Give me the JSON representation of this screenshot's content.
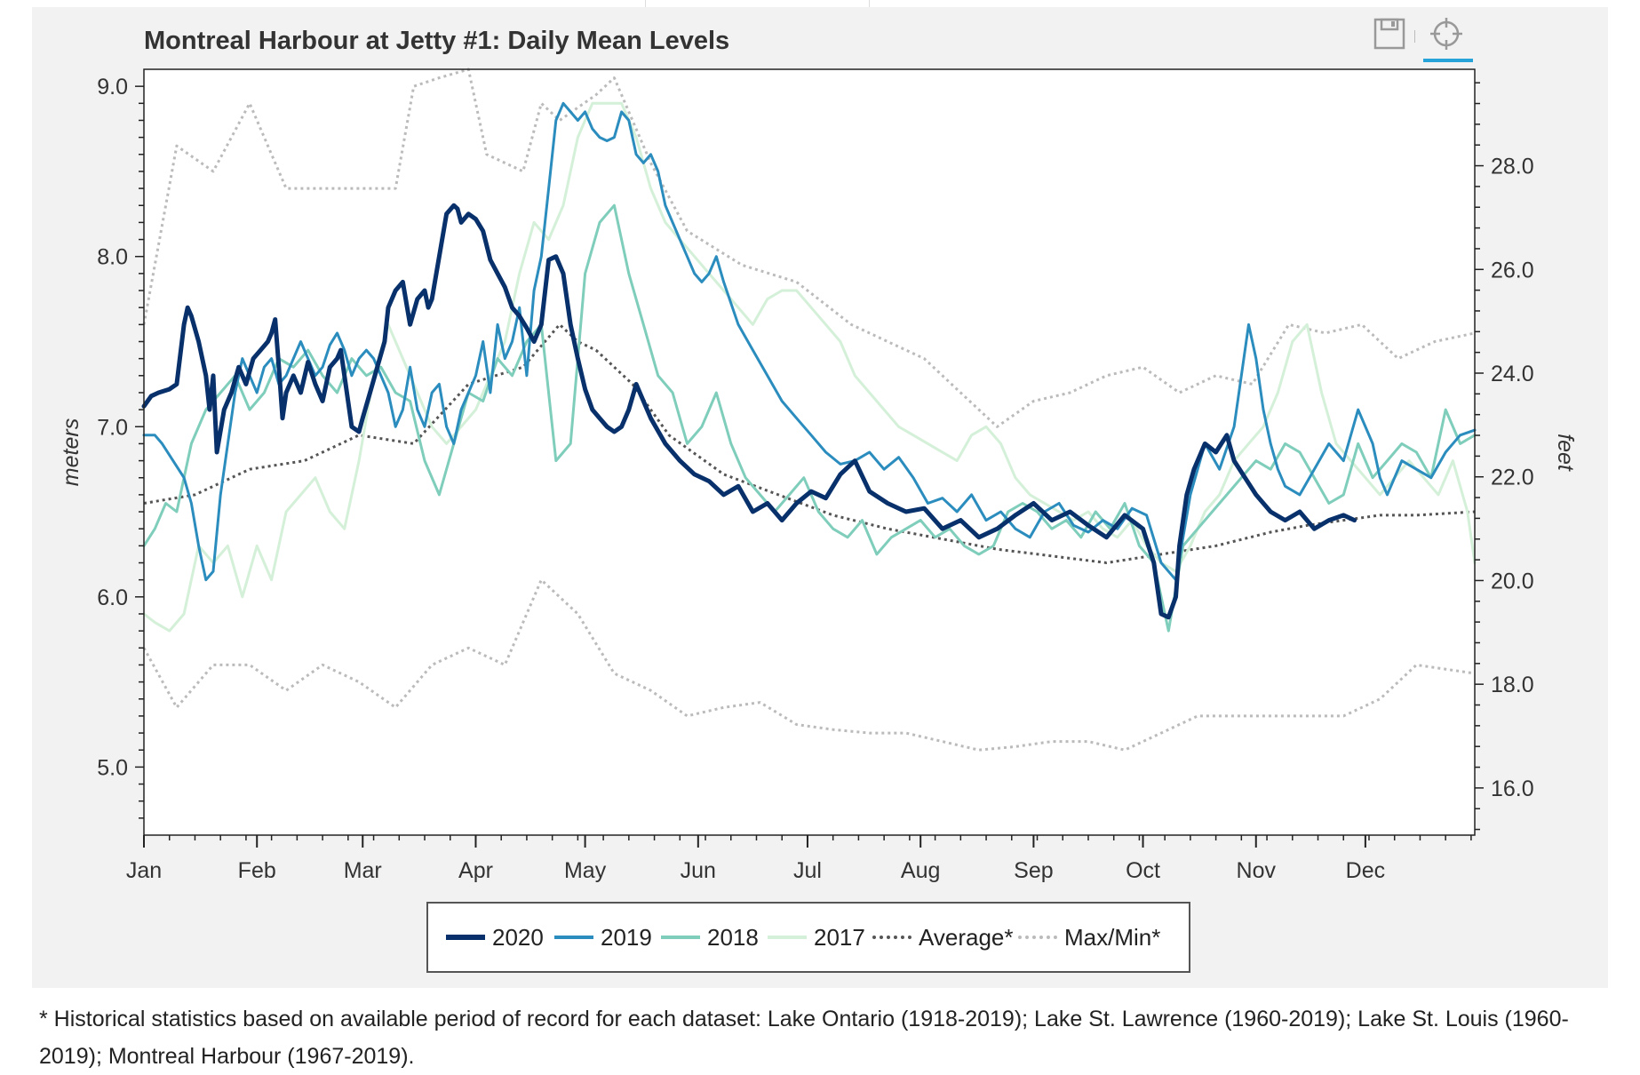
{
  "title": "Montreal Harbour at Jetty #1: Daily Mean Levels",
  "toolbar": {
    "save_icon": "save-icon",
    "crosshair_icon": "crosshair-icon"
  },
  "footnote": "* Historical statistics based on available period of record for each dataset: Lake Ontario (1918-2019); Lake St. Lawrence (1960-2019); Lake St. Louis (1960-2019); Montreal Harbour (1967-2019).",
  "legend": [
    {
      "label": "2020",
      "color": "#08306b",
      "style": "solid-thick"
    },
    {
      "label": "2019",
      "color": "#2b8cbe",
      "style": "solid"
    },
    {
      "label": "2018",
      "color": "#7fcdbb",
      "style": "solid"
    },
    {
      "label": "2017",
      "color": "#d4f0d8",
      "style": "solid"
    },
    {
      "label": "Average*",
      "color": "#555555",
      "style": "dotted"
    },
    {
      "label": "Max/Min*",
      "color": "#bbbbbb",
      "style": "dotted"
    }
  ],
  "chart_data": {
    "type": "line",
    "title": "Montreal Harbour at Jetty #1: Daily Mean Levels",
    "xlabel": "",
    "ylabel": "meters",
    "y2label": "feet",
    "x_unit": "day of year",
    "xlim": [
      1,
      366
    ],
    "ylim": [
      4.6,
      9.1
    ],
    "y2lim": [
      15.09,
      29.86
    ],
    "x_ticks": [
      {
        "label": "Jan",
        "day": 1
      },
      {
        "label": "Feb",
        "day": 32
      },
      {
        "label": "Mar",
        "day": 61
      },
      {
        "label": "Apr",
        "day": 92
      },
      {
        "label": "May",
        "day": 122
      },
      {
        "label": "Jun",
        "day": 153
      },
      {
        "label": "Jul",
        "day": 183
      },
      {
        "label": "Aug",
        "day": 214
      },
      {
        "label": "Sep",
        "day": 245
      },
      {
        "label": "Oct",
        "day": 275
      },
      {
        "label": "Nov",
        "day": 306
      },
      {
        "label": "Dec",
        "day": 336
      }
    ],
    "y_ticks": [
      "5.0",
      "6.0",
      "7.0",
      "8.0",
      "9.0"
    ],
    "y2_ticks": [
      "16.0",
      "18.0",
      "20.0",
      "22.0",
      "24.0",
      "26.0",
      "28.0"
    ],
    "grid": false,
    "legend_position": "bottom",
    "series": [
      {
        "name": "2020",
        "color": "#08306b",
        "width": 5,
        "x": [
          1,
          3,
          5,
          8,
          10,
          12,
          13,
          14,
          16,
          18,
          19,
          20,
          21,
          23,
          25,
          27,
          29,
          31,
          33,
          35,
          36,
          37,
          38,
          39,
          40,
          42,
          44,
          46,
          48,
          50,
          52,
          54,
          55,
          56,
          58,
          60,
          61,
          63,
          65,
          67,
          68,
          70,
          72,
          74,
          76,
          78,
          79,
          80,
          82,
          84,
          86,
          87,
          88,
          90,
          92,
          94,
          96,
          98,
          100,
          102,
          104,
          106,
          108,
          110,
          112,
          114,
          116,
          118,
          120,
          122,
          124,
          126,
          128,
          130,
          132,
          134,
          136,
          140,
          144,
          148,
          152,
          156,
          160,
          164,
          168,
          172,
          176,
          180,
          184,
          188,
          192,
          196,
          200,
          205,
          210,
          215,
          220,
          225,
          230,
          235,
          240,
          245,
          250,
          255,
          260,
          265,
          270,
          275,
          278,
          280,
          282,
          284,
          285,
          287,
          289,
          292,
          295,
          298,
          300,
          303,
          306,
          310,
          314,
          318,
          322,
          326,
          330,
          333
        ],
        "y": [
          7.12,
          7.18,
          7.2,
          7.22,
          7.25,
          7.6,
          7.7,
          7.65,
          7.5,
          7.3,
          7.1,
          7.3,
          6.85,
          7.1,
          7.2,
          7.35,
          7.25,
          7.4,
          7.45,
          7.5,
          7.55,
          7.63,
          7.35,
          7.05,
          7.2,
          7.3,
          7.2,
          7.38,
          7.25,
          7.15,
          7.35,
          7.4,
          7.45,
          7.3,
          7.0,
          6.97,
          7.05,
          7.2,
          7.35,
          7.5,
          7.7,
          7.8,
          7.85,
          7.6,
          7.75,
          7.8,
          7.7,
          7.75,
          8.0,
          8.25,
          8.3,
          8.28,
          8.2,
          8.25,
          8.22,
          8.15,
          7.98,
          7.9,
          7.82,
          7.7,
          7.65,
          7.58,
          7.5,
          7.6,
          7.98,
          8.0,
          7.9,
          7.6,
          7.4,
          7.22,
          7.1,
          7.05,
          7.0,
          6.97,
          7.0,
          7.1,
          7.25,
          7.05,
          6.9,
          6.8,
          6.72,
          6.68,
          6.6,
          6.65,
          6.5,
          6.55,
          6.45,
          6.55,
          6.62,
          6.58,
          6.72,
          6.8,
          6.62,
          6.55,
          6.5,
          6.52,
          6.4,
          6.45,
          6.35,
          6.4,
          6.48,
          6.55,
          6.45,
          6.5,
          6.42,
          6.35,
          6.48,
          6.4,
          6.2,
          5.9,
          5.88,
          6.0,
          6.3,
          6.6,
          6.75,
          6.9,
          6.85,
          6.95,
          6.8,
          6.7,
          6.6,
          6.5,
          6.45,
          6.5,
          6.4,
          6.45,
          6.48,
          6.45
        ]
      },
      {
        "name": "2019",
        "color": "#2b8cbe",
        "width": 3,
        "x": [
          1,
          4,
          6,
          9,
          12,
          14,
          16,
          18,
          20,
          22,
          24,
          26,
          28,
          30,
          32,
          34,
          36,
          38,
          40,
          42,
          44,
          46,
          48,
          50,
          52,
          54,
          56,
          58,
          60,
          62,
          64,
          66,
          68,
          70,
          72,
          74,
          76,
          78,
          80,
          82,
          84,
          86,
          88,
          90,
          92,
          94,
          96,
          98,
          100,
          102,
          104,
          106,
          108,
          110,
          112,
          114,
          116,
          118,
          120,
          122,
          124,
          126,
          128,
          130,
          132,
          134,
          136,
          138,
          140,
          142,
          144,
          146,
          148,
          150,
          152,
          154,
          156,
          158,
          160,
          164,
          168,
          172,
          176,
          180,
          184,
          188,
          192,
          196,
          200,
          204,
          208,
          212,
          216,
          220,
          224,
          228,
          232,
          236,
          240,
          244,
          248,
          252,
          256,
          260,
          264,
          268,
          272,
          276,
          280,
          284,
          288,
          292,
          296,
          300,
          302,
          304,
          306,
          308,
          310,
          312,
          314,
          318,
          322,
          326,
          330,
          334,
          338,
          340,
          342,
          346,
          350,
          354,
          358,
          362,
          366
        ],
        "y": [
          6.95,
          6.95,
          6.9,
          6.8,
          6.7,
          6.55,
          6.3,
          6.1,
          6.15,
          6.6,
          6.9,
          7.2,
          7.4,
          7.3,
          7.2,
          7.35,
          7.4,
          7.25,
          7.3,
          7.4,
          7.5,
          7.4,
          7.3,
          7.35,
          7.48,
          7.55,
          7.45,
          7.3,
          7.4,
          7.45,
          7.4,
          7.3,
          7.2,
          7.0,
          7.1,
          7.35,
          7.1,
          7.0,
          7.2,
          7.25,
          7.0,
          6.9,
          7.1,
          7.2,
          7.3,
          7.5,
          7.2,
          7.6,
          7.4,
          7.5,
          7.7,
          7.3,
          7.8,
          8.0,
          8.4,
          8.8,
          8.9,
          8.85,
          8.8,
          8.85,
          8.75,
          8.7,
          8.68,
          8.7,
          8.85,
          8.8,
          8.6,
          8.55,
          8.6,
          8.5,
          8.3,
          8.2,
          8.1,
          8.0,
          7.9,
          7.85,
          7.9,
          8.0,
          7.85,
          7.6,
          7.45,
          7.3,
          7.15,
          7.05,
          6.95,
          6.85,
          6.78,
          6.8,
          6.85,
          6.75,
          6.82,
          6.7,
          6.55,
          6.58,
          6.5,
          6.6,
          6.45,
          6.5,
          6.4,
          6.35,
          6.5,
          6.55,
          6.42,
          6.38,
          6.45,
          6.4,
          6.52,
          6.48,
          6.2,
          6.1,
          6.6,
          6.9,
          6.75,
          7.0,
          7.3,
          7.6,
          7.4,
          7.1,
          6.9,
          6.75,
          6.65,
          6.6,
          6.75,
          6.9,
          6.8,
          7.1,
          6.9,
          6.7,
          6.6,
          6.8,
          6.75,
          6.7,
          6.85,
          6.95,
          6.98
        ]
      },
      {
        "name": "2018",
        "color": "#7fcdbb",
        "width": 3,
        "x": [
          1,
          4,
          7,
          10,
          14,
          18,
          22,
          26,
          30,
          34,
          38,
          42,
          46,
          50,
          54,
          58,
          62,
          66,
          70,
          74,
          78,
          82,
          86,
          90,
          94,
          98,
          102,
          106,
          110,
          114,
          118,
          122,
          126,
          130,
          134,
          138,
          142,
          146,
          150,
          154,
          158,
          162,
          166,
          170,
          174,
          178,
          182,
          186,
          190,
          194,
          198,
          202,
          206,
          210,
          214,
          218,
          222,
          226,
          230,
          234,
          238,
          242,
          246,
          250,
          254,
          258,
          262,
          266,
          270,
          274,
          278,
          282,
          286,
          290,
          294,
          298,
          302,
          306,
          310,
          314,
          318,
          322,
          326,
          330,
          334,
          338,
          342,
          346,
          350,
          354,
          358,
          362,
          366
        ],
        "y": [
          6.3,
          6.4,
          6.55,
          6.5,
          6.9,
          7.1,
          7.2,
          7.3,
          7.1,
          7.2,
          7.4,
          7.35,
          7.45,
          7.3,
          7.2,
          7.4,
          7.3,
          7.35,
          7.2,
          7.15,
          6.8,
          6.6,
          6.9,
          7.2,
          7.15,
          7.4,
          7.3,
          7.5,
          7.6,
          6.8,
          6.9,
          7.9,
          8.2,
          8.3,
          7.9,
          7.6,
          7.3,
          7.2,
          6.9,
          7.0,
          7.2,
          6.9,
          6.7,
          6.6,
          6.5,
          6.6,
          6.7,
          6.5,
          6.4,
          6.35,
          6.45,
          6.25,
          6.35,
          6.4,
          6.45,
          6.35,
          6.4,
          6.3,
          6.25,
          6.3,
          6.5,
          6.55,
          6.5,
          6.4,
          6.45,
          6.35,
          6.5,
          6.4,
          6.55,
          6.3,
          6.2,
          5.8,
          6.3,
          6.4,
          6.5,
          6.6,
          6.7,
          6.8,
          6.75,
          6.9,
          6.85,
          6.7,
          6.55,
          6.6,
          6.9,
          6.7,
          6.8,
          6.9,
          6.85,
          6.7,
          7.1,
          6.9,
          6.95
        ]
      },
      {
        "name": "2017",
        "color": "#d4f0d8",
        "width": 3,
        "x": [
          1,
          4,
          8,
          12,
          16,
          20,
          24,
          28,
          32,
          36,
          40,
          44,
          48,
          52,
          56,
          60,
          64,
          68,
          72,
          76,
          80,
          84,
          88,
          92,
          96,
          100,
          104,
          108,
          112,
          116,
          120,
          124,
          128,
          132,
          136,
          140,
          144,
          148,
          152,
          156,
          160,
          164,
          168,
          172,
          176,
          180,
          184,
          188,
          192,
          196,
          200,
          204,
          208,
          212,
          216,
          220,
          224,
          228,
          232,
          236,
          240,
          244,
          248,
          252,
          256,
          260,
          264,
          268,
          272,
          276,
          280,
          284,
          288,
          292,
          296,
          300,
          304,
          308,
          312,
          316,
          320,
          324,
          328,
          332,
          336,
          340,
          344,
          348,
          352,
          356,
          360,
          364,
          366
        ],
        "y": [
          5.9,
          5.85,
          5.8,
          5.9,
          6.3,
          6.2,
          6.3,
          6.0,
          6.3,
          6.1,
          6.5,
          6.6,
          6.7,
          6.5,
          6.4,
          6.8,
          7.3,
          7.6,
          7.4,
          7.2,
          7.0,
          6.9,
          7.0,
          7.1,
          7.3,
          7.5,
          7.9,
          8.2,
          8.1,
          8.3,
          8.7,
          8.9,
          8.9,
          8.9,
          8.7,
          8.4,
          8.2,
          8.1,
          8.0,
          7.9,
          7.8,
          7.7,
          7.6,
          7.75,
          7.8,
          7.8,
          7.7,
          7.6,
          7.5,
          7.3,
          7.2,
          7.1,
          7.0,
          6.95,
          6.9,
          6.85,
          6.8,
          6.95,
          7.0,
          6.9,
          6.7,
          6.6,
          6.55,
          6.5,
          6.45,
          6.5,
          6.4,
          6.35,
          6.45,
          6.3,
          6.2,
          6.15,
          6.3,
          6.5,
          6.6,
          6.8,
          6.9,
          7.0,
          7.2,
          7.5,
          7.6,
          7.2,
          6.9,
          6.8,
          6.7,
          6.6,
          6.7,
          6.8,
          6.7,
          6.6,
          6.8,
          6.5,
          6.2
        ]
      },
      {
        "name": "Average*",
        "color": "#555555",
        "width": 3,
        "dash": "3,4",
        "x": [
          1,
          15,
          30,
          45,
          60,
          75,
          90,
          105,
          115,
          120,
          125,
          135,
          145,
          160,
          175,
          190,
          205,
          220,
          235,
          250,
          265,
          280,
          295,
          310,
          320,
          330,
          340,
          350,
          366
        ],
        "y": [
          6.55,
          6.6,
          6.75,
          6.8,
          6.95,
          6.9,
          7.25,
          7.35,
          7.6,
          7.5,
          7.45,
          7.25,
          6.95,
          6.72,
          6.6,
          6.48,
          6.4,
          6.34,
          6.28,
          6.24,
          6.2,
          6.25,
          6.3,
          6.38,
          6.42,
          6.45,
          6.48,
          6.48,
          6.5
        ]
      },
      {
        "name": "Max",
        "color": "#bbbbbb",
        "width": 3,
        "dash": "3,4",
        "x": [
          1,
          10,
          20,
          30,
          40,
          50,
          60,
          70,
          75,
          82,
          90,
          95,
          105,
          110,
          115,
          125,
          130,
          140,
          150,
          165,
          180,
          195,
          205,
          215,
          225,
          235,
          245,
          255,
          265,
          275,
          285,
          295,
          305,
          315,
          325,
          335,
          345,
          355,
          366
        ],
        "y": [
          7.6,
          8.65,
          8.5,
          8.9,
          8.4,
          8.4,
          8.4,
          8.4,
          9.0,
          9.05,
          9.1,
          8.6,
          8.5,
          8.9,
          8.8,
          8.95,
          9.05,
          8.55,
          8.15,
          7.95,
          7.85,
          7.6,
          7.5,
          7.4,
          7.2,
          7.0,
          7.15,
          7.2,
          7.3,
          7.35,
          7.2,
          7.3,
          7.25,
          7.6,
          7.55,
          7.6,
          7.4,
          7.5,
          7.55
        ]
      },
      {
        "name": "Min",
        "color": "#bbbbbb",
        "width": 3,
        "dash": "3,4",
        "x": [
          1,
          10,
          20,
          30,
          40,
          50,
          60,
          70,
          80,
          90,
          100,
          110,
          120,
          130,
          140,
          150,
          160,
          170,
          180,
          190,
          200,
          210,
          220,
          230,
          240,
          250,
          260,
          270,
          280,
          290,
          300,
          310,
          320,
          330,
          340,
          350,
          366
        ],
        "y": [
          5.7,
          5.35,
          5.6,
          5.6,
          5.45,
          5.6,
          5.5,
          5.35,
          5.6,
          5.7,
          5.6,
          6.1,
          5.9,
          5.55,
          5.45,
          5.3,
          5.35,
          5.38,
          5.25,
          5.22,
          5.2,
          5.2,
          5.15,
          5.1,
          5.12,
          5.15,
          5.15,
          5.1,
          5.2,
          5.3,
          5.3,
          5.3,
          5.3,
          5.3,
          5.4,
          5.6,
          5.55
        ]
      }
    ]
  }
}
